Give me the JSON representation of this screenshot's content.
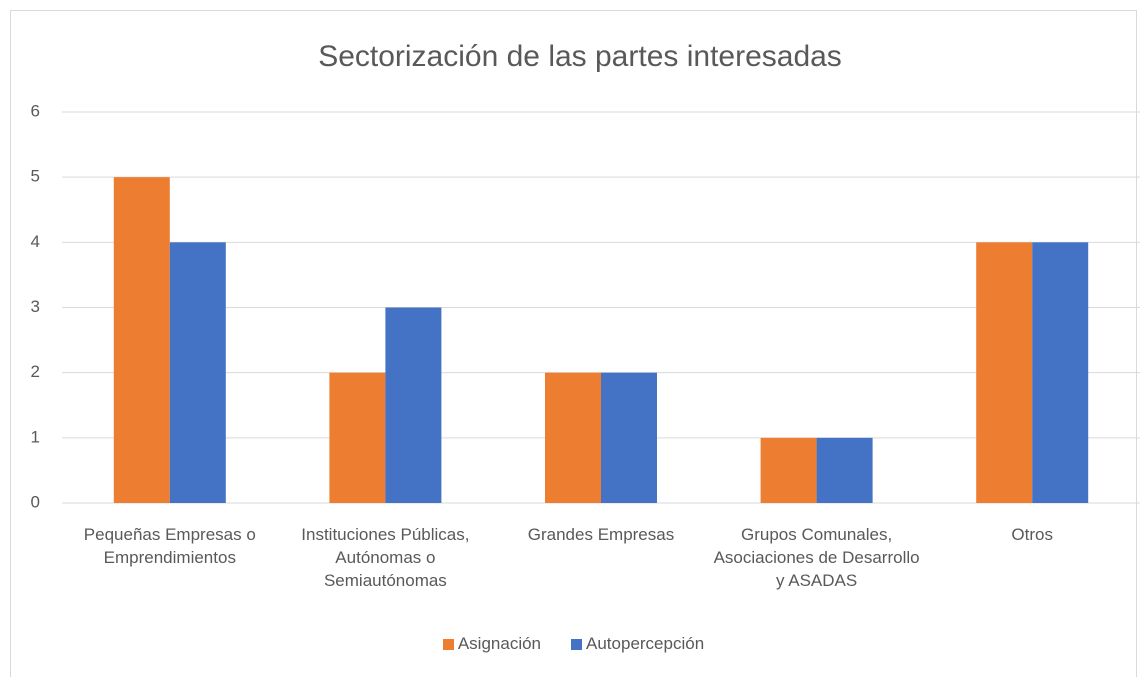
{
  "chart_data": {
    "type": "bar",
    "title": "Sectorización de las partes interesadas",
    "categories": [
      "Pequeñas Empresas o Emprendimientos",
      "Instituciones Públicas, Autónomas o Semiautónomas",
      "Grandes Empresas",
      "Grupos Comunales, Asociaciones de Desarrollo y ASADAS",
      "Otros"
    ],
    "series": [
      {
        "name": "Asignación",
        "color": "#ed7d31",
        "values": [
          5,
          2,
          2,
          1,
          4
        ]
      },
      {
        "name": "Autopercepción",
        "color": "#4472c4",
        "values": [
          4,
          3,
          2,
          1,
          4
        ]
      }
    ],
    "ylim": [
      0,
      6
    ],
    "yticks": [
      0,
      1,
      2,
      3,
      4,
      5,
      6
    ],
    "grid": true,
    "legend": "bottom"
  }
}
